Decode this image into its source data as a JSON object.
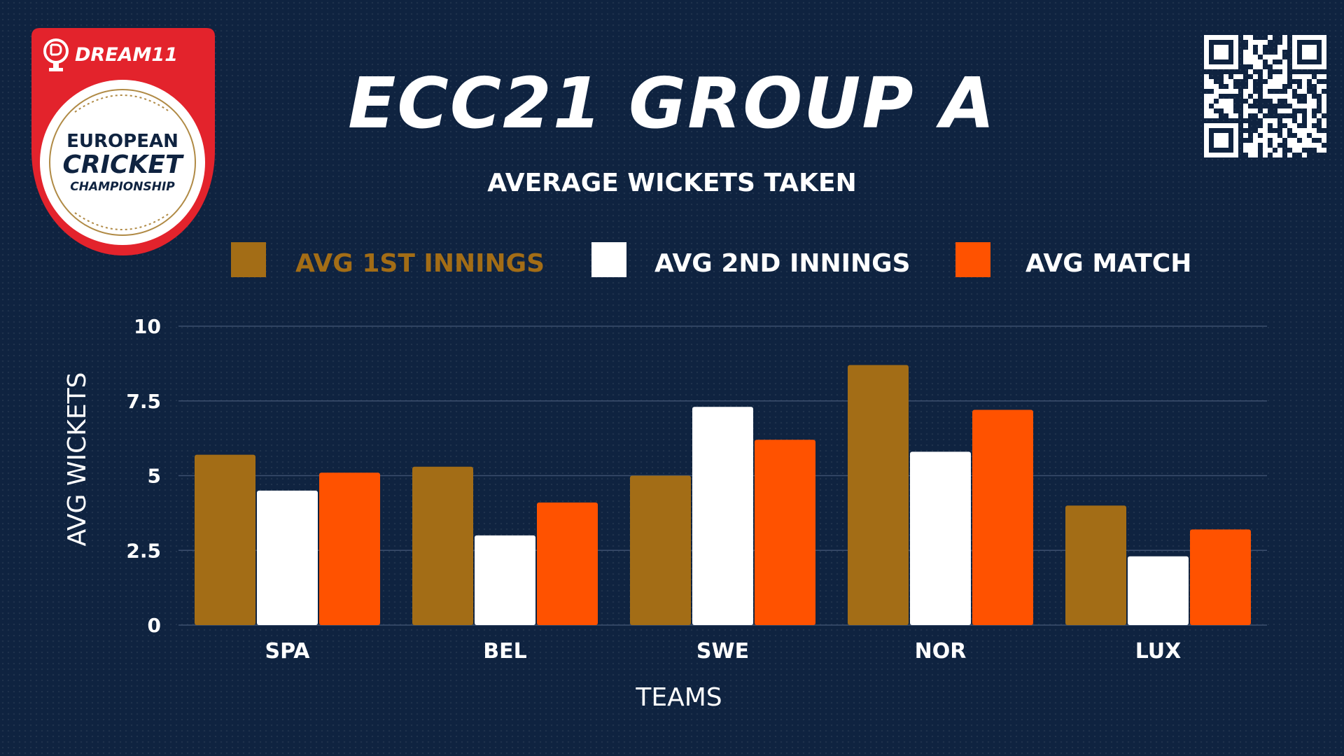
{
  "header": {
    "title": "ECC21 GROUP A",
    "subtitle": "AVERAGE WICKETS TAKEN"
  },
  "logo": {
    "brand_text": "DREAM11",
    "line1": "EUROPEAN",
    "line2": "CRICKET",
    "line3": "CHAMPIONSHIP"
  },
  "colors": {
    "background": "#0f2340",
    "first_innings": "#a36d16",
    "second_innings": "#ffffff",
    "match": "#ff5200",
    "logo_red": "#e3232c",
    "logo_gold": "#b08a45",
    "gridline": "#3c4f6e",
    "text": "#ffffff"
  },
  "qr_icon": "qr-code-icon",
  "chart_data": {
    "type": "bar",
    "title": "AVERAGE WICKETS TAKEN",
    "xlabel": "TEAMS",
    "ylabel": "AVG WICKETS",
    "ylim": [
      0,
      10
    ],
    "yticks": [
      0,
      2.5,
      5,
      7.5,
      10
    ],
    "ytick_labels": [
      "0",
      "2.5",
      "5",
      "7.5",
      "10"
    ],
    "grid": true,
    "legend_position": "top",
    "categories": [
      "SPA",
      "BEL",
      "SWE",
      "NOR",
      "LUX"
    ],
    "series": [
      {
        "name": "AVG 1ST INNINGS",
        "color": "#a36d16",
        "values": [
          5.7,
          5.3,
          5.0,
          8.7,
          4.0
        ]
      },
      {
        "name": "AVG 2ND INNINGS",
        "color": "#ffffff",
        "values": [
          4.5,
          3.0,
          7.3,
          5.8,
          2.3
        ]
      },
      {
        "name": "AVG MATCH",
        "color": "#ff5200",
        "values": [
          5.1,
          4.1,
          6.2,
          7.2,
          3.2
        ]
      }
    ]
  }
}
